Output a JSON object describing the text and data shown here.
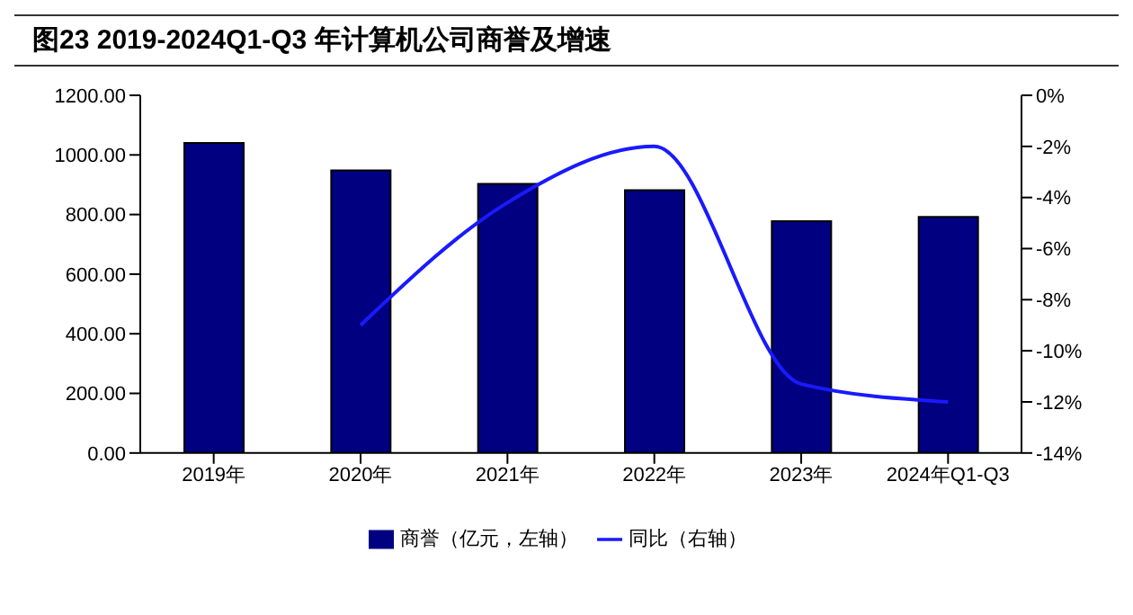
{
  "chart_data": {
    "type": "bar",
    "title": "图23 2019-2024Q1-Q3 年计算机公司商誉及增速",
    "categories": [
      "2019年",
      "2020年",
      "2021年",
      "2022年",
      "2023年",
      "2024年Q1-Q3"
    ],
    "series": [
      {
        "name": "商誉（亿元，左轴）",
        "color": "#000080",
        "values": [
          1040,
          948,
          903,
          882,
          778,
          792
        ]
      },
      {
        "name": "同比（右轴）",
        "type": "line",
        "axis": "y2",
        "color": "#1a1aff",
        "values": [
          null,
          -9,
          -4.2,
          -2,
          -11.3,
          -12
        ]
      }
    ],
    "ylim": [
      0,
      1200
    ],
    "yticks": [
      {
        "value": 0,
        "label": "0.00"
      },
      {
        "value": 200,
        "label": "200.00"
      },
      {
        "value": 400,
        "label": "400.00"
      },
      {
        "value": 600,
        "label": "600.00"
      },
      {
        "value": 800,
        "label": "800.00"
      },
      {
        "value": 1000,
        "label": "1000.00"
      },
      {
        "value": 1200,
        "label": "1200.00"
      }
    ],
    "y2lim": [
      -14,
      0
    ],
    "y2ticks": [
      {
        "value": -14,
        "label": "-14%"
      },
      {
        "value": -12,
        "label": "-12%"
      },
      {
        "value": -10,
        "label": "-10%"
      },
      {
        "value": -8,
        "label": "-8%"
      },
      {
        "value": -6,
        "label": "-6%"
      },
      {
        "value": -4,
        "label": "-4%"
      },
      {
        "value": -2,
        "label": "-2%"
      },
      {
        "value": 0,
        "label": "0%"
      }
    ],
    "grid": false,
    "legend": "bottom",
    "marker": "none",
    "line_style": "solid"
  }
}
